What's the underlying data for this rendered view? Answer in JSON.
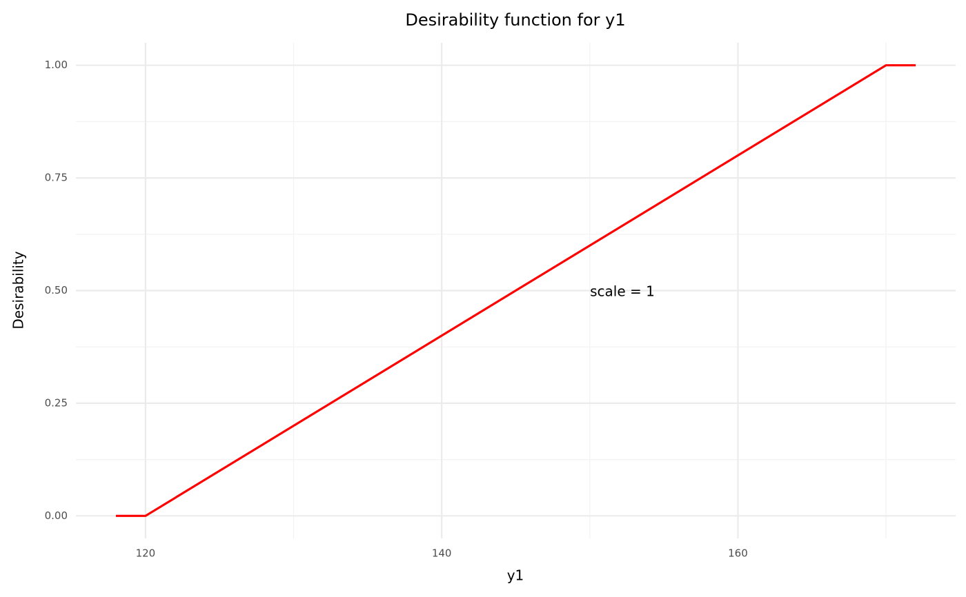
{
  "chart_data": {
    "type": "line",
    "title": "Desirability function for y1",
    "x_label": "y1",
    "y_label": "Desirability",
    "annotation": "scale = 1",
    "x": [
      118,
      120,
      170,
      172
    ],
    "series": [
      {
        "name": "y1",
        "color": "#ff0000",
        "values": [
          0,
          0,
          1,
          1
        ]
      }
    ],
    "xlim": [
      115.3,
      174.7
    ],
    "xticks": [
      120,
      140,
      160
    ],
    "ylim": [
      -0.05,
      1.05
    ],
    "yticks": [
      {
        "value": 0,
        "label": "0.00"
      },
      {
        "value": 0.25,
        "label": "0.25"
      },
      {
        "value": 0.5,
        "label": "0.50"
      },
      {
        "value": 0.75,
        "label": "0.75"
      },
      {
        "value": 1,
        "label": "1.00"
      }
    ],
    "grid": true,
    "legend": false
  }
}
